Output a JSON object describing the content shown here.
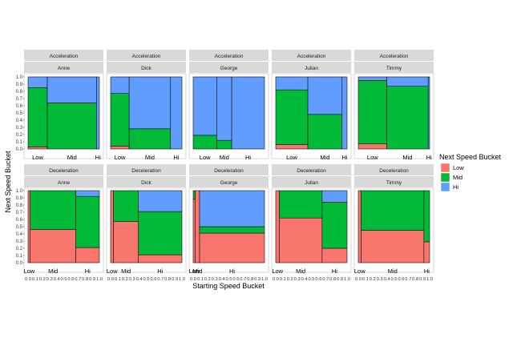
{
  "chart_data": {
    "type": "mosaic",
    "title": "",
    "xlabel": "Starting Speed Bucket",
    "ylabel": "Next Speed Bucket",
    "xlim": [
      0,
      1
    ],
    "ylim": [
      0,
      1
    ],
    "y_ticks": [
      "0.0",
      "0.1",
      "0.2",
      "0.3",
      "0.4",
      "0.5",
      "0.6",
      "0.7",
      "0.8",
      "0.9",
      "1.0"
    ],
    "x_ticks": [
      "0.0",
      "0.1",
      "0.2",
      "0.3",
      "0.4",
      "0.5",
      "0.6",
      "0.7",
      "0.8",
      "0.9",
      "1.0"
    ],
    "categories": [
      "Low",
      "Mid",
      "Hi"
    ],
    "legend": {
      "title": "Next Speed Bucket",
      "position": "right",
      "entries": [
        {
          "label": "Low",
          "color": "#F8766D"
        },
        {
          "label": "Mid",
          "color": "#00BA38"
        },
        {
          "label": "Hi",
          "color": "#619CFF"
        }
      ]
    },
    "panels": [
      {
        "strip_top": "Acceleration",
        "strip_name": "Anne",
        "row": 0,
        "col": 0,
        "columns": [
          {
            "label": "Low",
            "width": 0.27,
            "low": 0.03,
            "mid": 0.82,
            "hi": 0.15
          },
          {
            "label": "Mid",
            "width": 0.69,
            "low": 0.0,
            "mid": 0.64,
            "hi": 0.36
          },
          {
            "label": "Hi",
            "width": 0.04,
            "low": 0.0,
            "mid": 0.0,
            "hi": 1.0
          }
        ]
      },
      {
        "strip_top": "Acceleration",
        "strip_name": "Dick",
        "row": 0,
        "col": 1,
        "columns": [
          {
            "label": "Low",
            "width": 0.26,
            "low": 0.04,
            "mid": 0.73,
            "hi": 0.23
          },
          {
            "label": "Mid",
            "width": 0.58,
            "low": 0.0,
            "mid": 0.28,
            "hi": 0.72
          },
          {
            "label": "Hi",
            "width": 0.16,
            "low": 0.0,
            "mid": 0.0,
            "hi": 1.0
          }
        ]
      },
      {
        "strip_top": "Acceleration",
        "strip_name": "George",
        "row": 0,
        "col": 2,
        "columns": [
          {
            "label": "Low",
            "width": 0.33,
            "low": 0.0,
            "mid": 0.19,
            "hi": 0.81
          },
          {
            "label": "Mid",
            "width": 0.21,
            "low": 0.0,
            "mid": 0.12,
            "hi": 0.88
          },
          {
            "label": "Hi",
            "width": 0.46,
            "low": 0.0,
            "mid": 0.0,
            "hi": 1.0
          }
        ]
      },
      {
        "strip_top": "Acceleration",
        "strip_name": "Julian",
        "row": 0,
        "col": 3,
        "columns": [
          {
            "label": "Low",
            "width": 0.45,
            "low": 0.06,
            "mid": 0.76,
            "hi": 0.18
          },
          {
            "label": "Mid",
            "width": 0.48,
            "low": 0.0,
            "mid": 0.48,
            "hi": 0.52
          },
          {
            "label": "Hi",
            "width": 0.07,
            "low": 0.0,
            "mid": 0.0,
            "hi": 1.0
          }
        ]
      },
      {
        "strip_top": "Acceleration",
        "strip_name": "Timmy",
        "row": 0,
        "col": 4,
        "columns": [
          {
            "label": "Low",
            "width": 0.4,
            "low": 0.07,
            "mid": 0.88,
            "hi": 0.05
          },
          {
            "label": "Mid",
            "width": 0.58,
            "low": 0.0,
            "mid": 0.87,
            "hi": 0.13
          },
          {
            "label": "Hi",
            "width": 0.02,
            "low": 0.0,
            "mid": 0.0,
            "hi": 1.0
          }
        ]
      },
      {
        "strip_top": "Deceleration",
        "strip_name": "Anne",
        "row": 1,
        "col": 0,
        "columns": [
          {
            "label": "Low",
            "width": 0.03,
            "low": 1.0,
            "mid": 0.0,
            "hi": 0.0
          },
          {
            "label": "Mid",
            "width": 0.64,
            "low": 0.46,
            "mid": 0.54,
            "hi": 0.0
          },
          {
            "label": "Hi",
            "width": 0.33,
            "low": 0.21,
            "mid": 0.71,
            "hi": 0.08
          }
        ]
      },
      {
        "strip_top": "Deceleration",
        "strip_name": "Dick",
        "row": 1,
        "col": 1,
        "columns": [
          {
            "label": "Low",
            "width": 0.04,
            "low": 1.0,
            "mid": 0.0,
            "hi": 0.0
          },
          {
            "label": "Mid",
            "width": 0.35,
            "low": 0.57,
            "mid": 0.43,
            "hi": 0.0
          },
          {
            "label": "Hi",
            "width": 0.61,
            "low": 0.11,
            "mid": 0.6,
            "hi": 0.29
          }
        ]
      },
      {
        "strip_top": "Deceleration",
        "strip_name": "George",
        "row": 1,
        "col": 2,
        "columns": [
          {
            "label": "Low",
            "width": 0.03,
            "low": 0.88,
            "mid": 0.12,
            "hi": 0.0
          },
          {
            "label": "Mid",
            "width": 0.06,
            "low": 1.0,
            "mid": 0.0,
            "hi": 0.0
          },
          {
            "label": "Hi",
            "width": 0.91,
            "low": 0.41,
            "mid": 0.09,
            "hi": 0.5
          }
        ]
      },
      {
        "strip_top": "Deceleration",
        "strip_name": "Julian",
        "row": 1,
        "col": 3,
        "columns": [
          {
            "label": "Low",
            "width": 0.05,
            "low": 1.0,
            "mid": 0.0,
            "hi": 0.0
          },
          {
            "label": "Mid",
            "width": 0.6,
            "low": 0.62,
            "mid": 0.38,
            "hi": 0.0
          },
          {
            "label": "Hi",
            "width": 0.35,
            "low": 0.2,
            "mid": 0.64,
            "hi": 0.16
          }
        ]
      },
      {
        "strip_top": "Deceleration",
        "strip_name": "Timmy",
        "row": 1,
        "col": 4,
        "columns": [
          {
            "label": "Low",
            "width": 0.04,
            "low": 1.0,
            "mid": 0.0,
            "hi": 0.0
          },
          {
            "label": "Mid",
            "width": 0.88,
            "low": 0.45,
            "mid": 0.55,
            "hi": 0.0
          },
          {
            "label": "Hi",
            "width": 0.08,
            "low": 0.29,
            "mid": 0.71,
            "hi": 0.0
          }
        ]
      }
    ]
  },
  "colors": {
    "low": "#F8766D",
    "mid": "#00BA38",
    "hi": "#619CFF",
    "strip": "#D9D9D9",
    "border": "#333333"
  }
}
